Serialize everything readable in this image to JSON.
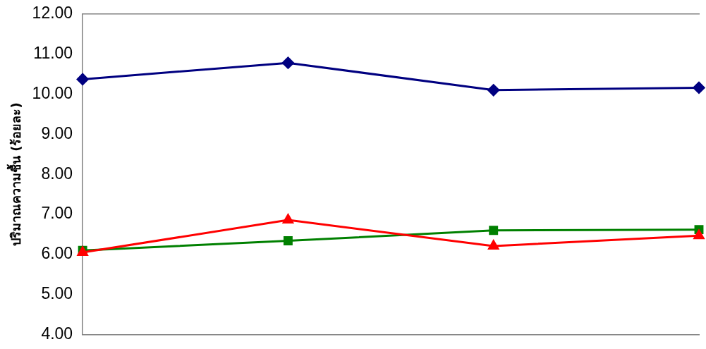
{
  "chart_data": {
    "type": "line",
    "ylabel": "ปริมาณความชื้น (ร้อยละ)",
    "categories": [
      null,
      null,
      null,
      null
    ],
    "ylim": [
      4,
      12
    ],
    "yticks": [
      {
        "value": 4,
        "label": "4.00"
      },
      {
        "value": 5,
        "label": "5.00"
      },
      {
        "value": 6,
        "label": "6.00"
      },
      {
        "value": 7,
        "label": "7.00"
      },
      {
        "value": 8,
        "label": "8.00"
      },
      {
        "value": 9,
        "label": "9.00"
      },
      {
        "value": 10,
        "label": "10.00"
      },
      {
        "value": 11,
        "label": "11.00"
      },
      {
        "value": 12,
        "label": "12.00"
      }
    ],
    "grid": false,
    "legend": false,
    "line_style": "solid",
    "series": [
      {
        "color": "#000080",
        "marker": "diamond",
        "values": [
          10.37,
          10.78,
          10.1,
          10.16
        ]
      },
      {
        "color": "#008000",
        "marker": "square",
        "values": [
          6.1,
          6.34,
          6.6,
          6.62
        ]
      },
      {
        "color": "#ff0000",
        "marker": "triangle",
        "values": [
          6.05,
          6.86,
          6.21,
          6.47
        ]
      }
    ]
  }
}
